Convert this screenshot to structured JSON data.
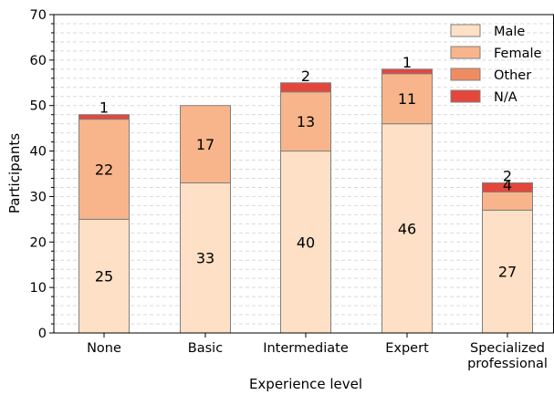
{
  "chart_data": {
    "type": "bar",
    "stacked": true,
    "xlabel": "Experience level",
    "ylabel": "Participants",
    "ylim": [
      0,
      70
    ],
    "y_major_ticks": [
      0,
      10,
      20,
      30,
      40,
      50,
      60,
      70
    ],
    "y_minor_step": 2,
    "grid": "horizontal dashed",
    "legend_position": "top-right",
    "categories": [
      {
        "lines": [
          "None"
        ]
      },
      {
        "lines": [
          "Basic"
        ]
      },
      {
        "lines": [
          "Intermediate"
        ]
      },
      {
        "lines": [
          "Expert"
        ]
      },
      {
        "lines": [
          "Specialized",
          "professional"
        ]
      }
    ],
    "series": [
      {
        "name": "Male",
        "color": "#fde0c5",
        "values": [
          25,
          33,
          40,
          46,
          27
        ],
        "labels": [
          "25",
          "33",
          "40",
          "46",
          "27"
        ]
      },
      {
        "name": "Female",
        "color": "#f8b58b",
        "values": [
          22,
          17,
          13,
          11,
          4
        ],
        "labels": [
          "22",
          "17",
          "13",
          "11",
          "4"
        ]
      },
      {
        "name": "Other",
        "color": "#f08c62",
        "values": [
          0,
          0,
          0,
          0,
          0
        ],
        "labels": [
          "",
          "",
          "",
          "",
          ""
        ]
      },
      {
        "name": "N/A",
        "color": "#e5463c",
        "values": [
          1,
          0,
          2,
          1,
          2
        ],
        "labels": [
          "1",
          "",
          "2",
          "1",
          "2"
        ]
      }
    ]
  }
}
